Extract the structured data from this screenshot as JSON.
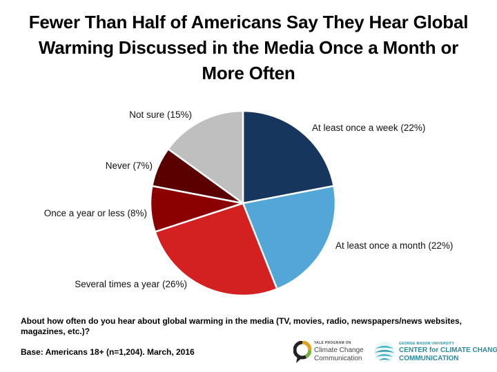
{
  "title_lines": [
    "Fewer Than Half of Americans Say They Hear Global",
    "Warming Discussed in the Media Once a Month or",
    "More Often"
  ],
  "question": "About how often do you hear about global warming in the media (TV, movies, radio, newspapers/news websites, magazines, etc.)?",
  "base": "Base: Americans 18+ (n=1,204). March, 2016",
  "logos": {
    "yale_small": "YALE PROGRAM ON",
    "yale_line1": "Climate Change",
    "yale_line2": "Communication",
    "gmu_small": "GEORGE MASON UNIVERSITY",
    "gmu_line1": "CENTER for CLIMATE CHANGE",
    "gmu_line2": "COMMUNICATION"
  },
  "chart_data": {
    "type": "pie",
    "start_angle_deg": 0,
    "direction": "clockwise",
    "slices": [
      {
        "label": "At least once a week (22%)",
        "value": 22,
        "color": "#17365d"
      },
      {
        "label": "At least once a month (22%)",
        "value": 22,
        "color": "#53a7d6"
      },
      {
        "label": "Several times a year (26%)",
        "value": 26,
        "color": "#d42020"
      },
      {
        "label": "Once a year or less (8%)",
        "value": 8,
        "color": "#8b0000"
      },
      {
        "label": "Never (7%)",
        "value": 7,
        "color": "#5a0000"
      },
      {
        "label": "Not sure (15%)",
        "value": 15,
        "color": "#bfbfbf"
      }
    ]
  }
}
